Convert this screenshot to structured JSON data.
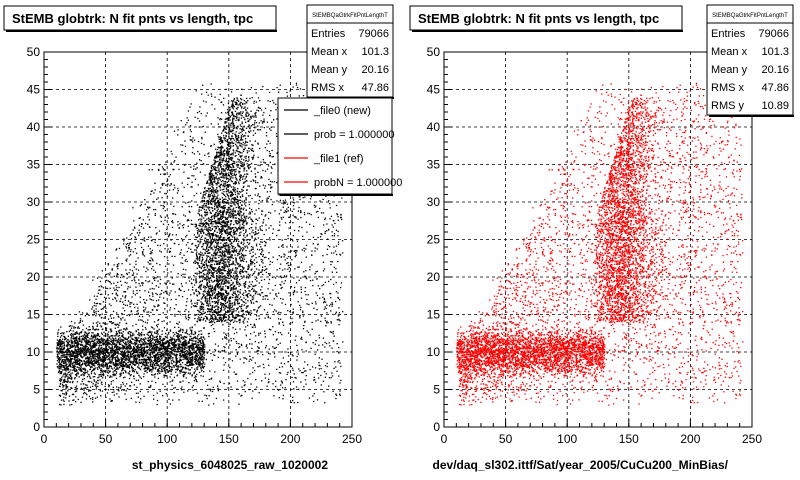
{
  "colors": {
    "new": "#000000",
    "ref": "#ff0000",
    "background": "#ffffff"
  },
  "chart_data": [
    {
      "type": "scatter",
      "title": "StEMB globtrk: N fit pnts vs length, tpc",
      "xlabel": "st_physics_6048025_raw_1020002",
      "ylabel": "",
      "xlim": [
        0,
        250
      ],
      "ylim": [
        0,
        50
      ],
      "x_ticks": [
        "0",
        "50",
        "100",
        "150",
        "200",
        "250"
      ],
      "y_ticks": [
        "0",
        "5",
        "10",
        "15",
        "20",
        "25",
        "30",
        "35",
        "40",
        "45",
        "50"
      ],
      "grid": true,
      "series_color": "#000000",
      "stats": {
        "title": "StEMBQaGtrkFitPntLengthT",
        "rows": [
          {
            "label": "Entries",
            "value": "79066"
          },
          {
            "label": "Mean x",
            "value": "101.3"
          },
          {
            "label": "Mean y",
            "value": "20.16"
          },
          {
            "label": "RMS x",
            "value": "47.86"
          }
        ]
      },
      "legend": {
        "placement": "top-right",
        "entries": [
          {
            "label": "_file0 (new)",
            "color": "#000000"
          },
          {
            "label": "prob = 1.000000",
            "color": "#000000"
          },
          {
            "label": "_file1 (ref)",
            "color": "#ff0000"
          },
          {
            "label": "probN = 1.000000",
            "color": "#ff0000"
          }
        ]
      }
    },
    {
      "type": "scatter",
      "title": "StEMB globtrk: N fit pnts vs length, tpc",
      "xlabel": "dev/daq_sl302.ittf/Sat/year_2005/CuCu200_MinBias/",
      "ylabel": "",
      "xlim": [
        0,
        250
      ],
      "ylim": [
        0,
        50
      ],
      "x_ticks": [
        "0",
        "50",
        "100",
        "150",
        "200",
        "250"
      ],
      "y_ticks": [
        "0",
        "5",
        "10",
        "15",
        "20",
        "25",
        "30",
        "35",
        "40",
        "45",
        "50"
      ],
      "grid": true,
      "series_color": "#ff0000",
      "stats": {
        "title": "StEMBQaGtrkFitPntLengthT",
        "rows": [
          {
            "label": "Entries",
            "value": "79066"
          },
          {
            "label": "Mean x",
            "value": "101.3"
          },
          {
            "label": "Mean y",
            "value": "20.16"
          },
          {
            "label": "RMS x",
            "value": "47.86"
          },
          {
            "label": "RMS y",
            "value": "10.89"
          }
        ]
      }
    }
  ]
}
